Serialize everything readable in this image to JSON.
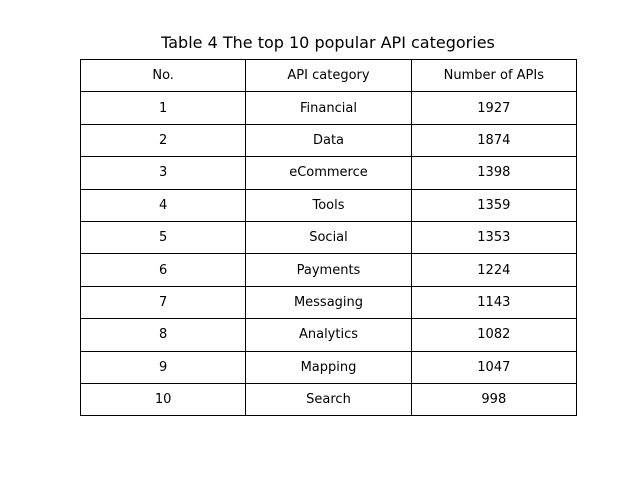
{
  "chart_data": {
    "type": "table",
    "title": "Table 4 The top 10 popular API categories",
    "columns": [
      "No.",
      "API category",
      "Number of APIs"
    ],
    "rows": [
      [
        "1",
        "Financial",
        "1927"
      ],
      [
        "2",
        "Data",
        "1874"
      ],
      [
        "3",
        "eCommerce",
        "1398"
      ],
      [
        "4",
        "Tools",
        "1359"
      ],
      [
        "5",
        "Social",
        "1353"
      ],
      [
        "6",
        "Payments",
        "1224"
      ],
      [
        "7",
        "Messaging",
        "1143"
      ],
      [
        "8",
        "Analytics",
        "1082"
      ],
      [
        "9",
        "Mapping",
        "1047"
      ],
      [
        "10",
        "Search",
        "998"
      ]
    ]
  }
}
